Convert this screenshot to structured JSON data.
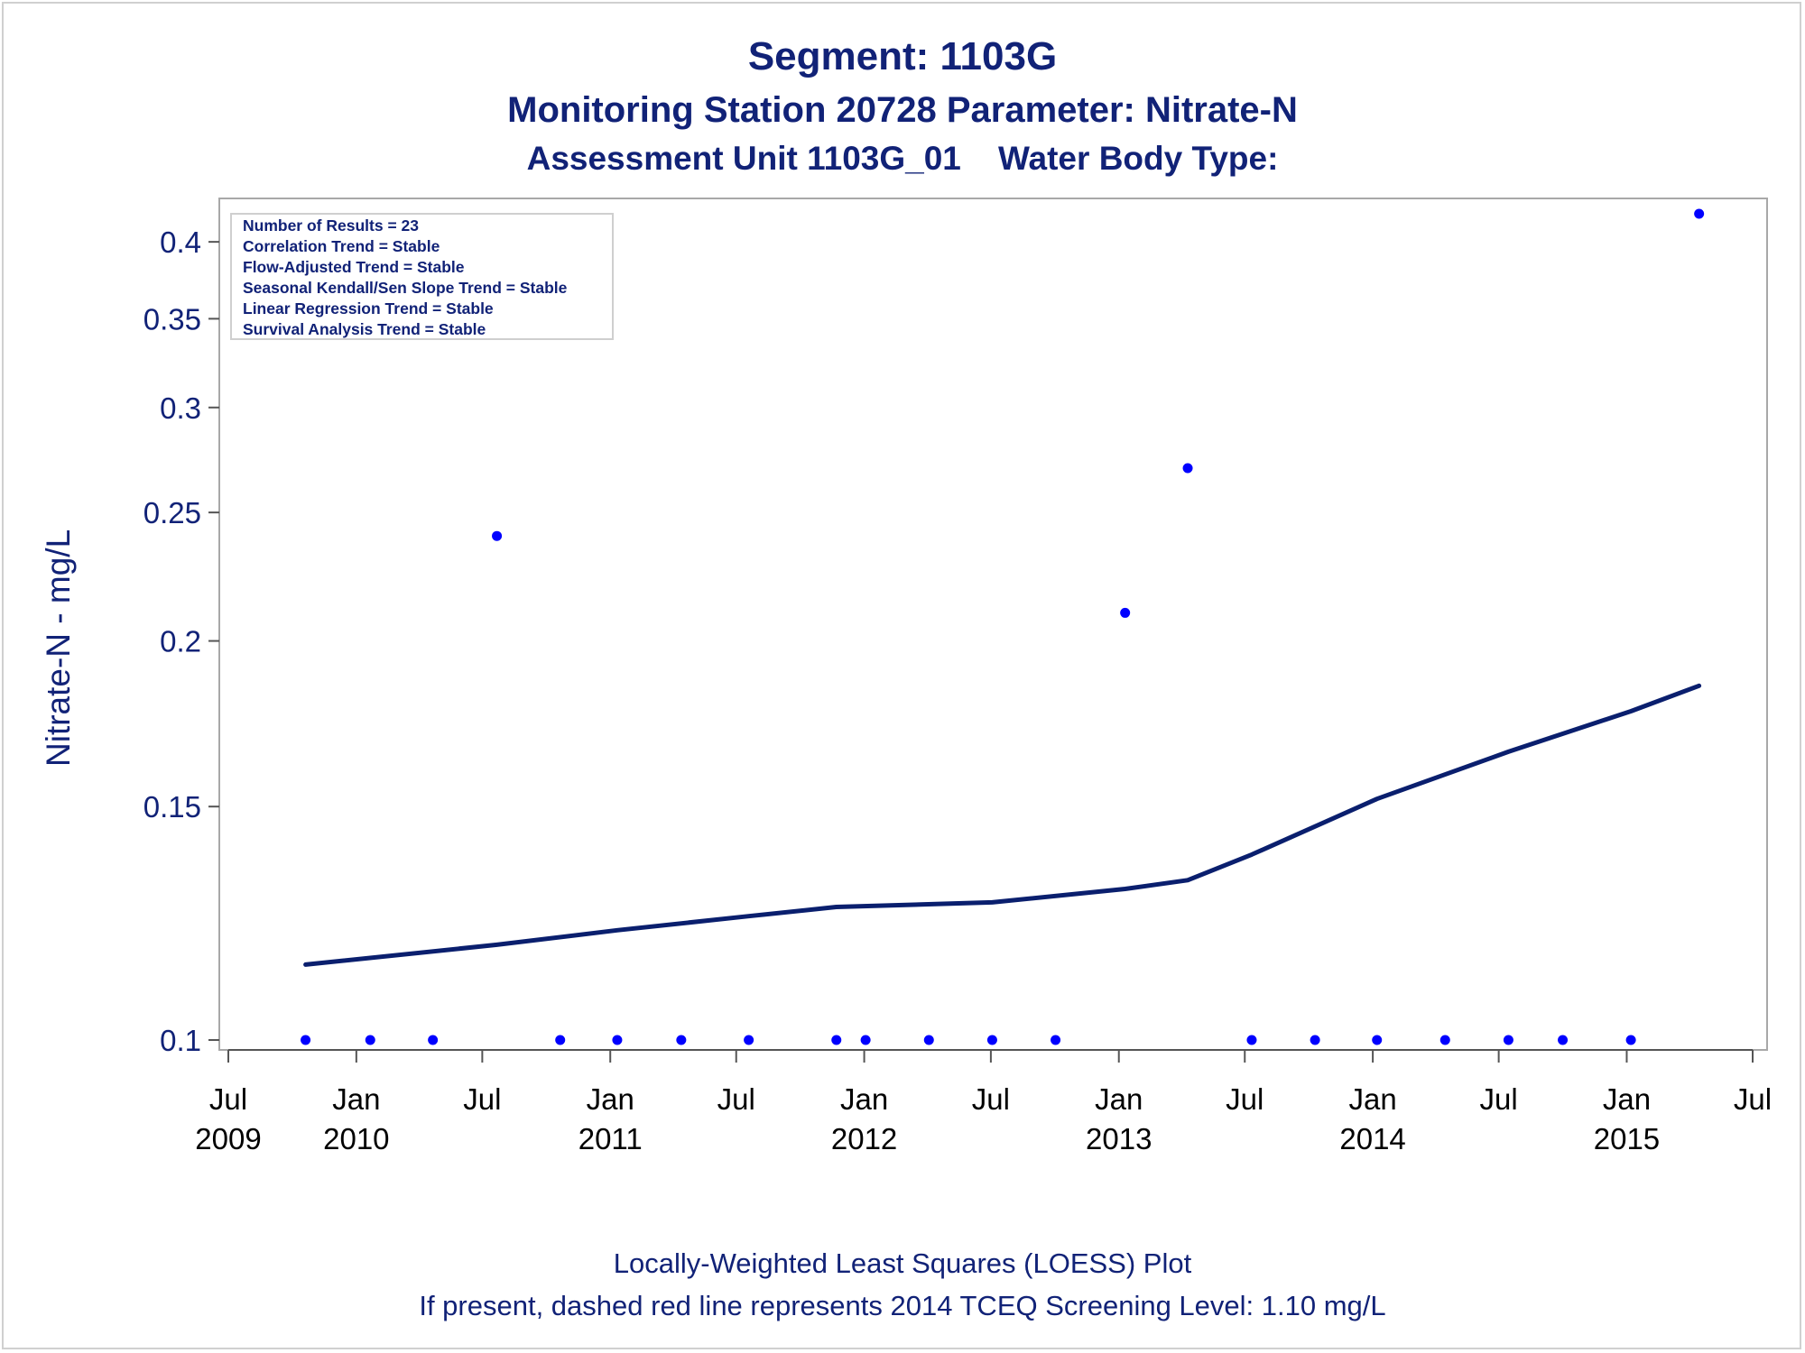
{
  "titles": {
    "segment": "Segment: 1103G",
    "station": "Monitoring Station 20728 Parameter: Nitrate-N",
    "assessment": "Assessment Unit 1103G_01    Water Body Type:"
  },
  "footer": {
    "line1": "Locally-Weighted Least Squares (LOESS) Plot",
    "line2": "If present, dashed red line represents 2014 TCEQ Screening Level: 1.10 mg/L"
  },
  "stats": [
    "Number of Results = 23",
    "Correlation Trend = Stable",
    "Flow-Adjusted Trend = Stable",
    "Seasonal Kendall/Sen Slope Trend = Stable",
    "Linear Regression Trend = Stable",
    "Survival Analysis Trend = Stable"
  ],
  "colors": {
    "text": "#112277",
    "points": "#0000ff",
    "loess_line": "#0a1f6e",
    "axis": "#555555",
    "frame": "#d0d0d0",
    "tick_label": "#112277"
  },
  "chart_data": {
    "type": "scatter",
    "title": "Segment: 1103G",
    "xlabel": "",
    "ylabel": "Nitrate-N - mg/L",
    "y_scale": "log",
    "ylim": [
      0.1,
      0.42
    ],
    "xlim": [
      "2009-07-01",
      "2015-07-01"
    ],
    "y_ticks": [
      {
        "value": 0.1,
        "label": "0.1"
      },
      {
        "value": 0.15,
        "label": "0.15"
      },
      {
        "value": 0.2,
        "label": "0.2"
      },
      {
        "value": 0.25,
        "label": "0.25"
      },
      {
        "value": 0.3,
        "label": "0.3"
      },
      {
        "value": 0.35,
        "label": "0.35"
      },
      {
        "value": 0.4,
        "label": "0.4"
      }
    ],
    "x_ticks": [
      {
        "date": "2009-07-01",
        "label": "Jul",
        "year": "2009"
      },
      {
        "date": "2010-01-01",
        "label": "Jan",
        "year": "2010"
      },
      {
        "date": "2010-07-01",
        "label": "Jul",
        "year": ""
      },
      {
        "date": "2011-01-01",
        "label": "Jan",
        "year": "2011"
      },
      {
        "date": "2011-07-01",
        "label": "Jul",
        "year": ""
      },
      {
        "date": "2012-01-01",
        "label": "Jan",
        "year": "2012"
      },
      {
        "date": "2012-07-01",
        "label": "Jul",
        "year": ""
      },
      {
        "date": "2013-01-01",
        "label": "Jan",
        "year": "2013"
      },
      {
        "date": "2013-07-01",
        "label": "Jul",
        "year": ""
      },
      {
        "date": "2014-01-01",
        "label": "Jan",
        "year": "2014"
      },
      {
        "date": "2014-07-01",
        "label": "Jul",
        "year": ""
      },
      {
        "date": "2015-01-01",
        "label": "Jan",
        "year": "2015"
      },
      {
        "date": "2015-07-01",
        "label": "Jul",
        "year": ""
      }
    ],
    "series": [
      {
        "type": "scatter",
        "points": [
          {
            "date": "2009-10-20",
            "y": 0.1
          },
          {
            "date": "2010-01-21",
            "y": 0.1
          },
          {
            "date": "2010-04-21",
            "y": 0.1
          },
          {
            "date": "2010-07-22",
            "y": 0.24
          },
          {
            "date": "2010-10-21",
            "y": 0.1
          },
          {
            "date": "2011-01-11",
            "y": 0.1
          },
          {
            "date": "2011-04-13",
            "y": 0.1
          },
          {
            "date": "2011-07-19",
            "y": 0.1
          },
          {
            "date": "2011-11-22",
            "y": 0.1
          },
          {
            "date": "2012-01-03",
            "y": 0.1
          },
          {
            "date": "2012-04-03",
            "y": 0.1
          },
          {
            "date": "2012-07-03",
            "y": 0.1
          },
          {
            "date": "2012-10-02",
            "y": 0.1
          },
          {
            "date": "2013-01-10",
            "y": 0.21
          },
          {
            "date": "2013-04-10",
            "y": 0.27
          },
          {
            "date": "2013-07-11",
            "y": 0.1
          },
          {
            "date": "2013-10-10",
            "y": 0.1
          },
          {
            "date": "2014-01-07",
            "y": 0.1
          },
          {
            "date": "2014-04-15",
            "y": 0.1
          },
          {
            "date": "2014-07-15",
            "y": 0.1
          },
          {
            "date": "2014-10-01",
            "y": 0.1
          },
          {
            "date": "2015-01-07",
            "y": 0.1
          },
          {
            "date": "2015-04-15",
            "y": 0.42
          }
        ]
      },
      {
        "type": "line",
        "points": [
          {
            "date": "2009-10-20",
            "y": 0.114
          },
          {
            "date": "2010-07-22",
            "y": 0.118
          },
          {
            "date": "2011-01-11",
            "y": 0.121
          },
          {
            "date": "2011-07-19",
            "y": 0.124
          },
          {
            "date": "2011-11-22",
            "y": 0.126
          },
          {
            "date": "2012-07-03",
            "y": 0.127
          },
          {
            "date": "2013-01-10",
            "y": 0.13
          },
          {
            "date": "2013-04-10",
            "y": 0.132
          },
          {
            "date": "2013-07-11",
            "y": 0.138
          },
          {
            "date": "2014-01-07",
            "y": 0.152
          },
          {
            "date": "2014-07-15",
            "y": 0.165
          },
          {
            "date": "2015-01-07",
            "y": 0.177
          },
          {
            "date": "2015-04-15",
            "y": 0.185
          }
        ]
      }
    ]
  }
}
